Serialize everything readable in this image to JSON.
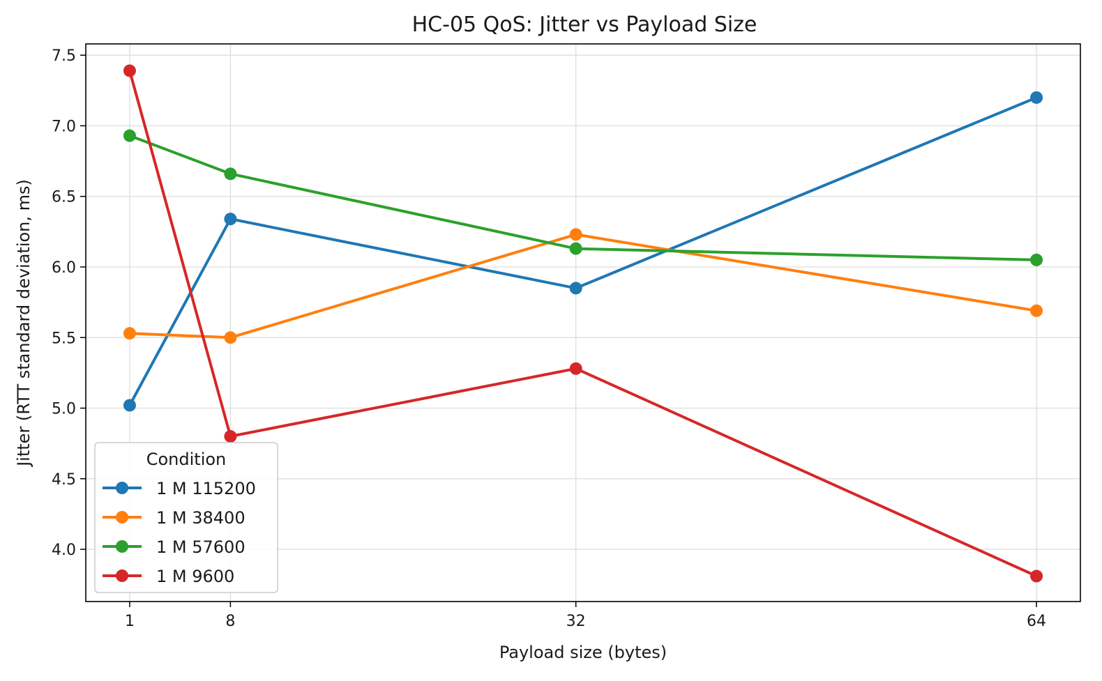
{
  "chart_data": {
    "type": "line",
    "title": "HC-05 QoS: Jitter vs Payload Size",
    "xlabel": "Payload size (bytes)",
    "ylabel": "Jitter (RTT standard deviation, ms)",
    "x": [
      1,
      8,
      32,
      64
    ],
    "xlim": [
      -2.05,
      67.05
    ],
    "ylim": [
      3.63,
      7.58
    ],
    "xticks": [
      "1",
      "8",
      "32",
      "64"
    ],
    "yticks": [
      "4.0",
      "4.5",
      "5.0",
      "5.5",
      "6.0",
      "6.5",
      "7.0",
      "7.5"
    ],
    "grid": true,
    "legend": {
      "title": "Condition",
      "placement": "lower-left"
    },
    "series": [
      {
        "name": "1 M 115200",
        "color": "#1f77b4",
        "values": [
          5.02,
          6.34,
          5.85,
          7.2
        ]
      },
      {
        "name": "1 M 38400",
        "color": "#ff7f0e",
        "values": [
          5.53,
          5.5,
          6.23,
          5.69
        ]
      },
      {
        "name": "1 M 57600",
        "color": "#2ca02c",
        "values": [
          6.93,
          6.66,
          6.13,
          6.05
        ]
      },
      {
        "name": "1 M 9600",
        "color": "#d62728",
        "values": [
          7.39,
          4.8,
          5.28,
          3.81
        ]
      }
    ]
  }
}
